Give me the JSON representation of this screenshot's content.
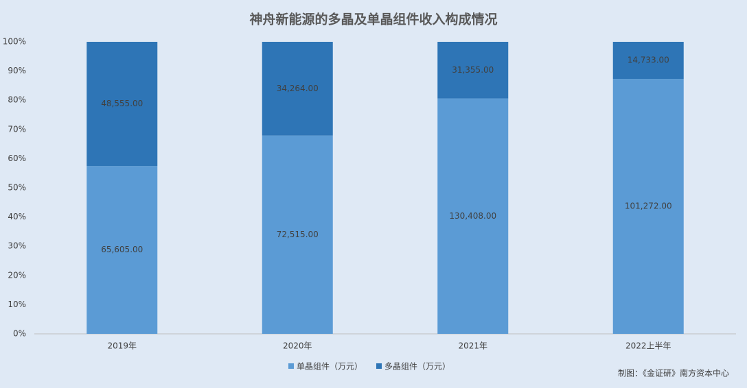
{
  "chart_data": {
    "type": "percent_stacked_bar",
    "title": "神舟新能源的多晶及单晶组件收入构成情况",
    "categories": [
      "2019年",
      "2020年",
      "2021年",
      "2022上半年"
    ],
    "series": [
      {
        "name": "单晶组件（万元）",
        "color": "#5b9bd5",
        "values": [
          65605,
          72515,
          130408,
          101272
        ],
        "value_labels": [
          "65,605.00",
          "72,515.00",
          "130,408.00",
          "101,272.00"
        ]
      },
      {
        "name": "多晶组件（万元）",
        "color": "#2e75b6",
        "values": [
          48555,
          34264,
          31355,
          14733
        ],
        "value_labels": [
          "48,555.00",
          "34,264.00",
          "31,355.00",
          "14,733.00"
        ]
      }
    ],
    "ylim": [
      0,
      100
    ],
    "yticks": [
      {
        "value": 0,
        "label": "0%"
      },
      {
        "value": 10,
        "label": "10%"
      },
      {
        "value": 20,
        "label": "20%"
      },
      {
        "value": 30,
        "label": "30%"
      },
      {
        "value": 40,
        "label": "40%"
      },
      {
        "value": 50,
        "label": "50%"
      },
      {
        "value": 60,
        "label": "60%"
      },
      {
        "value": 70,
        "label": "70%"
      },
      {
        "value": 80,
        "label": "80%"
      },
      {
        "value": 90,
        "label": "90%"
      },
      {
        "value": 100,
        "label": "100%"
      }
    ],
    "grid": false,
    "legend": "bottom",
    "source": "制图：《金证研》南方资本中心"
  }
}
